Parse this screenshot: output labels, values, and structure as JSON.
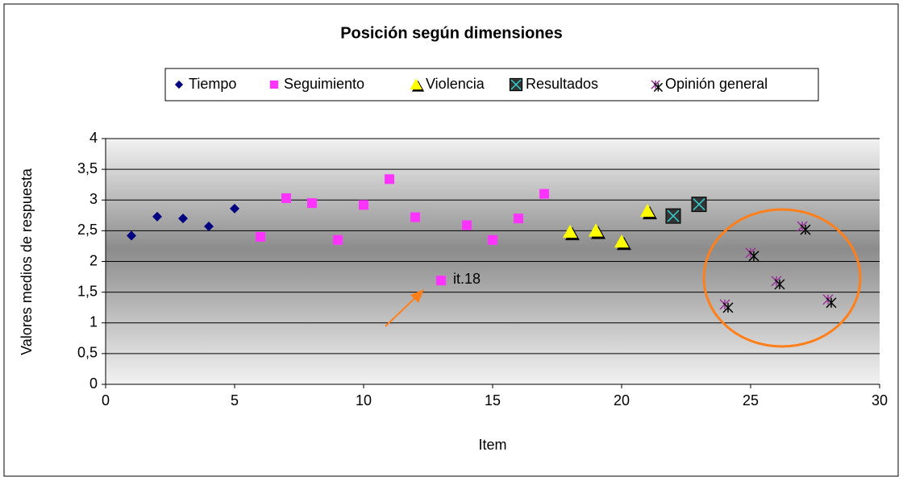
{
  "chart_data": {
    "type": "scatter",
    "title": "Posición según dimensiones",
    "x_label": "Item",
    "y_label": "Valores medios de respuesta",
    "annotation": "it.18",
    "xlim": [
      0,
      30
    ],
    "xticks": [
      0,
      5,
      10,
      15,
      20,
      25,
      30
    ],
    "ylim": [
      0,
      4
    ],
    "yticks": [
      0,
      {
        "value": 0.5,
        "label": "0,5"
      },
      1,
      {
        "value": 1.5,
        "label": "1,5"
      },
      2,
      {
        "value": 2.5,
        "label": "2,5"
      },
      3,
      {
        "value": 3.5,
        "label": "3,5"
      },
      4
    ],
    "grid": true,
    "legend": "top",
    "series": [
      {
        "name": "Tiempo",
        "marker": "diamond",
        "color": "#000080",
        "x": [
          1,
          2,
          3,
          4,
          5
        ],
        "values": [
          2.42,
          2.73,
          2.7,
          2.57,
          2.86
        ]
      },
      {
        "name": "Seguimiento",
        "marker": "square",
        "color": "#ff33ff",
        "x": [
          6,
          7,
          8,
          9,
          10,
          11,
          12,
          13,
          14,
          15,
          16,
          17
        ],
        "values": [
          2.4,
          3.03,
          2.95,
          2.35,
          2.92,
          3.34,
          2.72,
          1.69,
          2.59,
          2.35,
          2.7,
          3.1
        ]
      },
      {
        "name": "Violencia",
        "marker": "triangle",
        "color": "#ffff00",
        "x": [
          18,
          19,
          20,
          21
        ],
        "values": [
          2.48,
          2.5,
          2.32,
          2.82
        ]
      },
      {
        "name": "Resultados",
        "marker": "square-x",
        "color": "#333333",
        "x": [
          22,
          23
        ],
        "values": [
          2.74,
          2.93
        ]
      },
      {
        "name": "Opinión general",
        "marker": "star",
        "color": "#993399",
        "x": [
          24,
          25,
          26,
          27,
          28
        ],
        "values": [
          1.3,
          2.14,
          1.68,
          2.57,
          1.38
        ]
      }
    ]
  }
}
